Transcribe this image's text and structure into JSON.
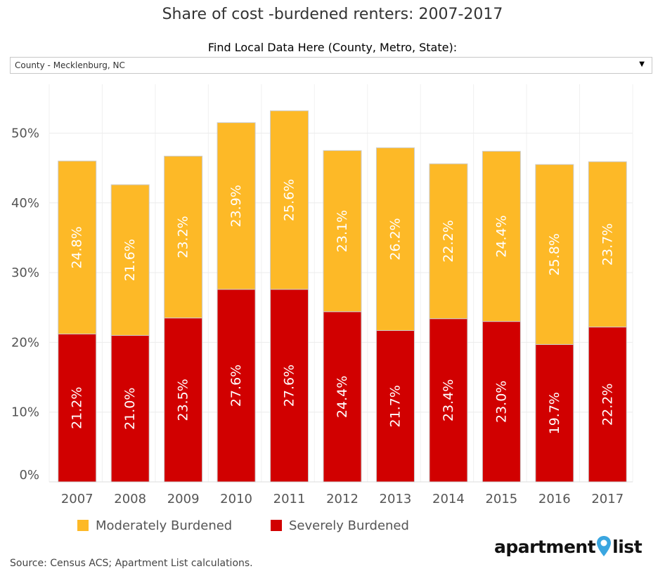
{
  "title": "Share of cost -burdened renters: 2007-2017",
  "filter": {
    "label": "Find Local Data Here (County, Metro, State):",
    "selected": "County - Mecklenburg, NC"
  },
  "source": "Source: Census ACS; Apartment List calculations.",
  "logo": {
    "left_text": "apartment",
    "right_text": "list"
  },
  "colors": {
    "moderate": "#fdb927",
    "severe": "#d10000",
    "pin": "#3aa6e0"
  },
  "chart_data": {
    "type": "bar",
    "stacked": true,
    "categories": [
      "2007",
      "2008",
      "2009",
      "2010",
      "2011",
      "2012",
      "2013",
      "2014",
      "2015",
      "2016",
      "2017"
    ],
    "series": [
      {
        "name": "Severely Burdened",
        "values": [
          21.2,
          21.0,
          23.5,
          27.6,
          27.6,
          24.4,
          21.7,
          23.4,
          23.0,
          19.7,
          22.2
        ],
        "labels": [
          "21.2%",
          "21.0%",
          "23.5%",
          "27.6%",
          "27.6%",
          "24.4%",
          "21.7%",
          "23.4%",
          "23.0%",
          "19.7%",
          "22.2%"
        ]
      },
      {
        "name": "Moderately Burdened",
        "values": [
          24.8,
          21.6,
          23.2,
          23.9,
          25.6,
          23.1,
          26.2,
          22.2,
          24.4,
          25.8,
          23.7
        ],
        "labels": [
          "24.8%",
          "21.6%",
          "23.2%",
          "23.9%",
          "25.6%",
          "23.1%",
          "26.2%",
          "22.2%",
          "24.4%",
          "25.8%",
          "23.7%"
        ]
      }
    ],
    "legend": [
      "Moderately Burdened",
      "Severely Burdened"
    ],
    "yticks": [
      0,
      10,
      20,
      30,
      40,
      50
    ],
    "ytick_labels": [
      "0%",
      "10%",
      "20%",
      "30%",
      "40%",
      "50%"
    ],
    "ylim": [
      0,
      57
    ],
    "xlabel": "",
    "ylabel": "",
    "grid": true,
    "legend_position": "bottom-left"
  }
}
